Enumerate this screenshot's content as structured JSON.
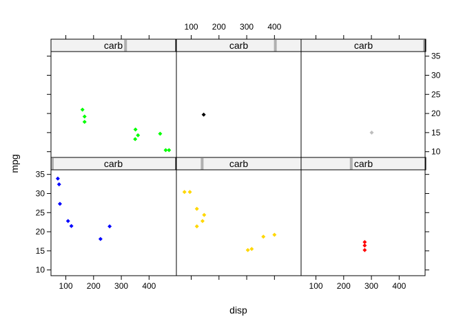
{
  "chart_data": {
    "type": "scatter",
    "layout": "lattice 3 columns x 2 rows, panels ordered bottom-left first",
    "xlabel": "disp",
    "ylabel": "mpg",
    "xlim": [
      46.5,
      496
    ],
    "ylim": [
      8.5,
      36.2
    ],
    "xticks": [
      100,
      200,
      300,
      400
    ],
    "yticks": [
      10,
      15,
      20,
      25,
      30,
      35
    ],
    "strip_label": "carb",
    "strip_bg": "#f2f2f2",
    "strip_marker": "#b0b0b0",
    "panels": [
      {
        "strip_label": "carb",
        "level_fraction": 0.0,
        "color": "#0000ff",
        "points": [
          [
            71.1,
            33.9
          ],
          [
            75.7,
            32.4
          ],
          [
            78.7,
            27.3
          ],
          [
            108,
            22.8
          ],
          [
            120.1,
            21.5
          ],
          [
            225,
            18.1
          ],
          [
            258,
            21.4
          ]
        ]
      },
      {
        "strip_label": "carb",
        "level_fraction": 0.2,
        "color": "#ffd700",
        "points": [
          [
            75.7,
            30.4
          ],
          [
            95.1,
            30.4
          ],
          [
            120.3,
            26.0
          ],
          [
            120.3,
            21.4
          ],
          [
            140.8,
            22.8
          ],
          [
            146.7,
            24.4
          ],
          [
            304,
            15.2
          ],
          [
            318,
            15.5
          ],
          [
            360,
            18.7
          ],
          [
            400,
            19.2
          ]
        ]
      },
      {
        "strip_label": "carb",
        "level_fraction": 0.4,
        "color": "#ff0000",
        "points": [
          [
            275.8,
            16.4
          ],
          [
            275.8,
            17.3
          ],
          [
            275.8,
            15.2
          ]
        ]
      },
      {
        "strip_label": "carb",
        "level_fraction": 0.6,
        "color": "#00ff00",
        "points": [
          [
            160,
            21.0
          ],
          [
            167.6,
            19.2
          ],
          [
            167.6,
            17.8
          ],
          [
            350,
            13.3
          ],
          [
            351,
            15.8
          ],
          [
            360,
            14.3
          ],
          [
            440,
            14.7
          ],
          [
            460,
            10.4
          ],
          [
            472,
            10.4
          ]
        ]
      },
      {
        "strip_label": "carb",
        "level_fraction": 0.8,
        "color": "#000000",
        "points": [
          [
            145,
            19.7
          ]
        ]
      },
      {
        "strip_label": "carb",
        "level_fraction": 1.0,
        "color": "#bebebe",
        "points": [
          [
            301,
            15.0
          ]
        ]
      }
    ]
  }
}
